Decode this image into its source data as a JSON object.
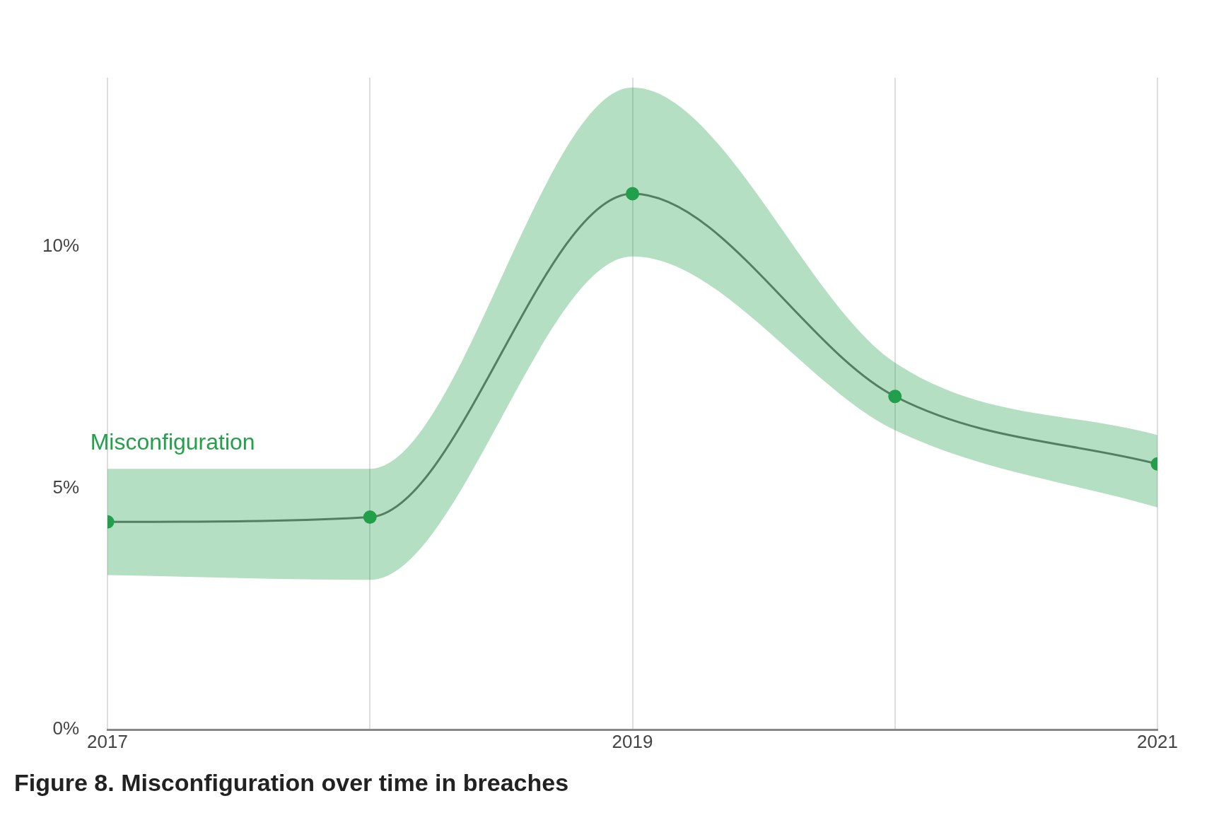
{
  "chart_data": {
    "type": "line",
    "title": "Figure 8. Misconfiguration over time in breaches",
    "x": [
      2017,
      2018,
      2019,
      2020,
      2021
    ],
    "series": [
      {
        "name": "Misconfiguration",
        "color": "#22a04a",
        "values": [
          4.3,
          4.4,
          11.1,
          6.9,
          5.5
        ],
        "lower": [
          3.2,
          3.1,
          9.8,
          6.2,
          4.6
        ],
        "upper": [
          5.4,
          5.4,
          13.3,
          7.6,
          6.1
        ]
      }
    ],
    "xlim": [
      2017,
      2021
    ],
    "xticks": [
      2017,
      {
        "value": 2018,
        "label": null
      },
      2019,
      {
        "value": 2020,
        "label": null
      },
      2021
    ],
    "ylim": [
      0,
      13.5
    ],
    "yticks": [
      {
        "value": 0,
        "label": "0%"
      },
      {
        "value": 5,
        "label": "5%"
      },
      {
        "value": 10,
        "label": "10%"
      }
    ],
    "grid": "x",
    "legend": false,
    "marker": "circle",
    "line_style": "solid"
  }
}
